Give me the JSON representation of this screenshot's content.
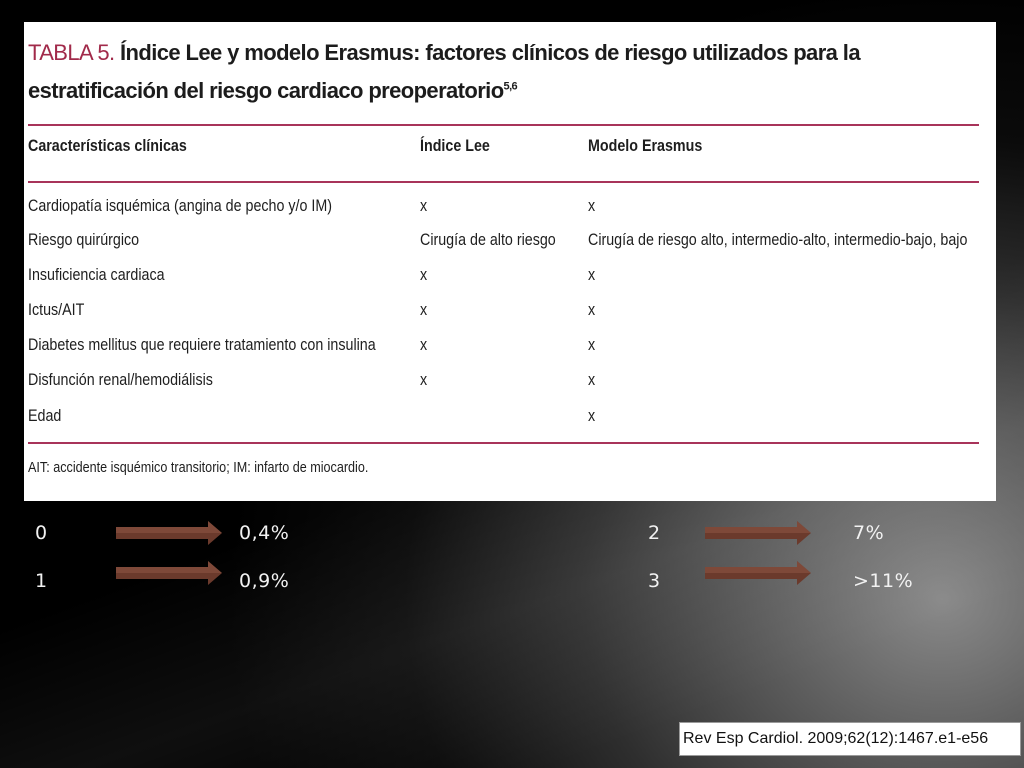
{
  "table": {
    "label": "TABLA 5.",
    "title": "Índice Lee y modelo Erasmus: factores clínicos de riesgo utilizados para la estratificación del riesgo cardiaco preoperatorio",
    "title_refs": "5,6",
    "headers": [
      "Características clínicas",
      "Índice Lee",
      "Modelo Erasmus"
    ],
    "rows": [
      [
        "Cardiopatía isquémica (angina de pecho y/o IM)",
        "x",
        "x"
      ],
      [
        "Riesgo quirúrgico",
        "Cirugía de alto riesgo",
        "Cirugía de riesgo alto, intermedio-alto, intermedio-bajo, bajo"
      ],
      [
        "Insuficiencia cardiaca",
        "x",
        "x"
      ],
      [
        "Ictus/AIT",
        "x",
        "x"
      ],
      [
        "Diabetes mellitus que requiere tratamiento con insulina",
        "x",
        "x"
      ],
      [
        "Disfunción renal/hemodiálisis",
        "x",
        "x"
      ],
      [
        "Edad",
        "",
        "x"
      ]
    ],
    "footnote": "AIT: accidente isquémico transitorio; IM: infarto de miocardio."
  },
  "risk_scores": [
    {
      "score": "0",
      "risk": "0,4%"
    },
    {
      "score": "1",
      "risk": "0,9%"
    },
    {
      "score": "2",
      "risk": "7%"
    },
    {
      "score": "3",
      "risk": ">11%"
    }
  ],
  "citation": "Rev Esp Cardiol. 2009;62(12):1467.e1-e56",
  "colors": {
    "title_label": "#a12a4a",
    "rule": "#a8345a",
    "arrow": "#6b3a2c"
  }
}
